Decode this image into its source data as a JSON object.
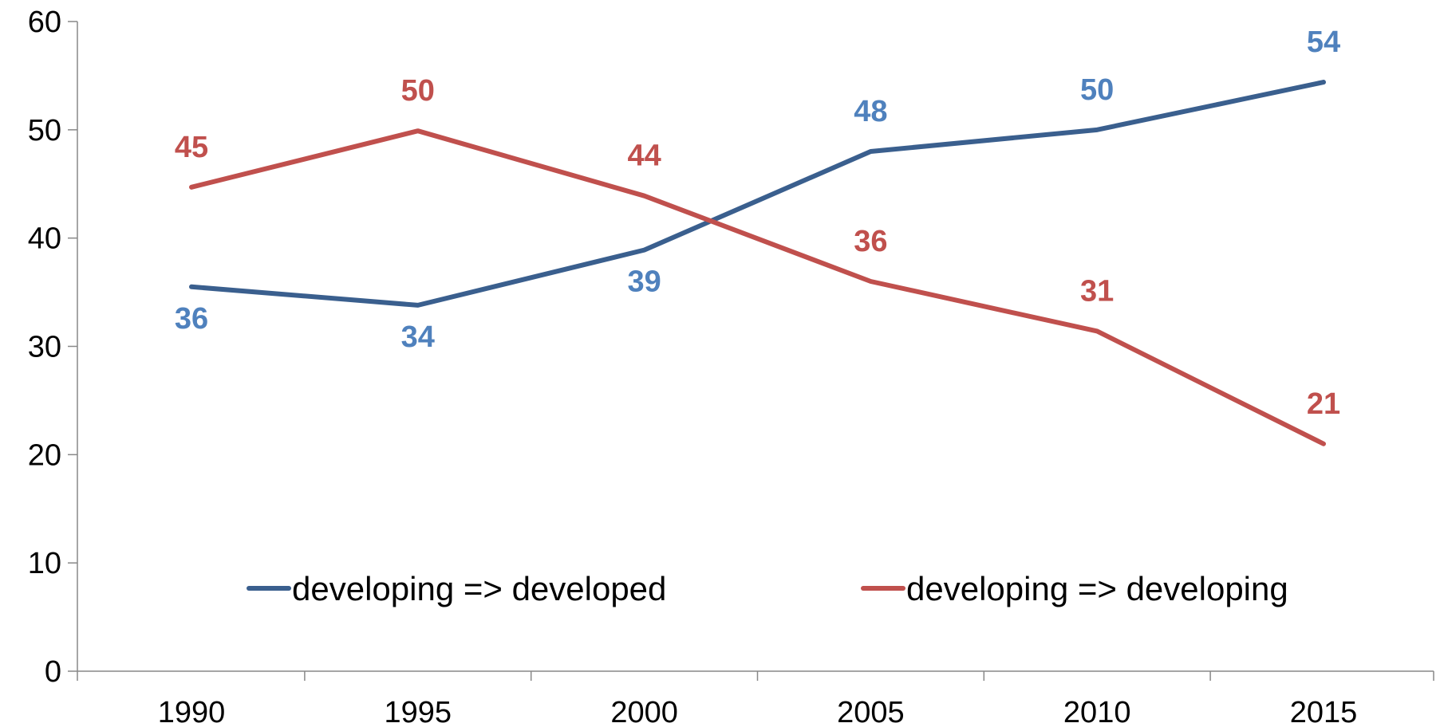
{
  "chart_data": {
    "type": "line",
    "categories": [
      "1990",
      "1995",
      "2000",
      "2005",
      "2010",
      "2015"
    ],
    "series": [
      {
        "name": "developing => developed",
        "values": [
          36,
          34,
          39,
          48,
          50,
          54
        ],
        "plot_values": [
          35.5,
          33.8,
          38.9,
          48.0,
          50.0,
          54.4
        ],
        "color": "#3A5F8E",
        "label_color": "#4F81BD"
      },
      {
        "name": "developing => developing",
        "values": [
          45,
          50,
          44,
          36,
          31,
          21
        ],
        "plot_values": [
          44.7,
          49.9,
          43.9,
          36.0,
          31.4,
          21.0
        ],
        "color": "#C0504D",
        "label_color": "#C0504D"
      }
    ],
    "yticks": [
      "0",
      "10",
      "20",
      "30",
      "40",
      "50",
      "60"
    ],
    "ylim": [
      0,
      60
    ],
    "grid": false,
    "legend_position": "bottom-inside"
  }
}
